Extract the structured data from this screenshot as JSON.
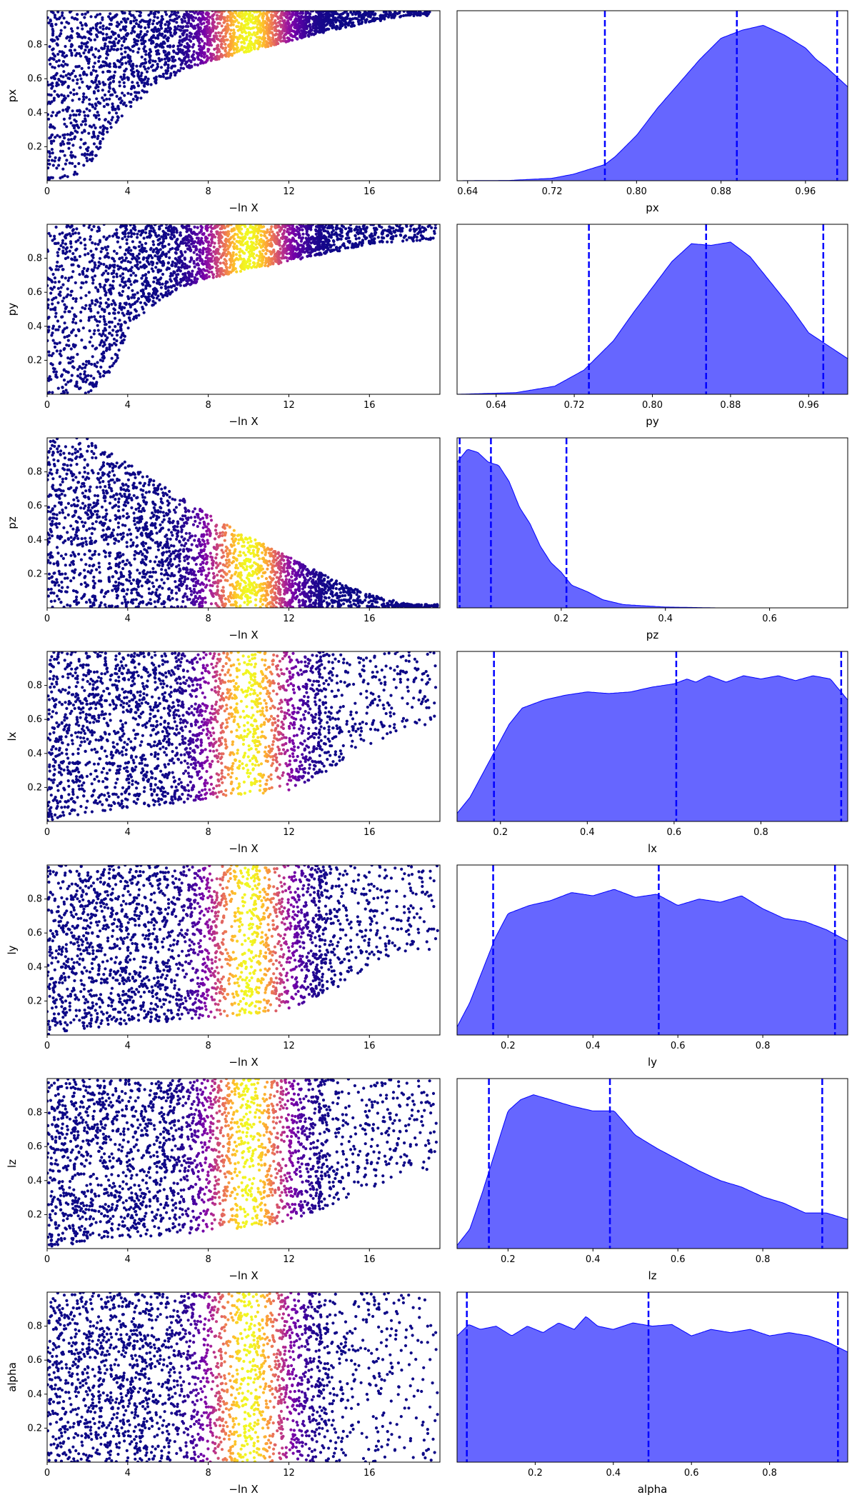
{
  "colors": {
    "scatter_colormap": [
      "#0d0887",
      "#46039f",
      "#7201a8",
      "#9c179e",
      "#bd3786",
      "#d8576b",
      "#ed7953",
      "#fb9f3a",
      "#fdca26",
      "#f0f921"
    ],
    "kde_fill": "#0000ff",
    "kde_fill_opacity": 0.6,
    "quantile_line": "#0000ff"
  },
  "chart_data": [
    {
      "type": "scatter",
      "param": "px",
      "xlabel": "−ln X",
      "ylabel": "px",
      "xlim": [
        0,
        19.5
      ],
      "ylim": [
        0,
        1
      ],
      "xticks": [
        0,
        4,
        8,
        12,
        16
      ],
      "xtick_labels": [
        "0",
        "4",
        "8",
        "12",
        "16"
      ],
      "yticks": [
        0.2,
        0.4,
        0.6,
        0.8
      ],
      "ytick_labels": [
        "0.2",
        "0.4",
        "0.6",
        "0.8"
      ],
      "colormap": "plasma",
      "color_peak_x": 10,
      "envelope": {
        "lower": [
          [
            0,
            0.0
          ],
          [
            1.5,
            0.0
          ],
          [
            2.5,
            0.15
          ],
          [
            3.0,
            0.28
          ],
          [
            4.0,
            0.42
          ],
          [
            5.0,
            0.52
          ],
          [
            6.0,
            0.6
          ],
          [
            7.0,
            0.66
          ],
          [
            8.0,
            0.7
          ],
          [
            10.0,
            0.76
          ],
          [
            12.0,
            0.82
          ],
          [
            14.0,
            0.88
          ],
          [
            16.0,
            0.93
          ],
          [
            18.0,
            0.97
          ]
        ],
        "upper_y": 1.0
      },
      "x_max_sample": 19.0
    },
    {
      "type": "area",
      "param": "px",
      "xlabel": "px",
      "xlim": [
        0.63,
        1.0
      ],
      "xticks": [
        0.64,
        0.72,
        0.8,
        0.88,
        0.96
      ],
      "xtick_labels": [
        "0.64",
        "0.72",
        "0.80",
        "0.88",
        "0.96"
      ],
      "ylim": [
        0,
        1.05
      ],
      "quantiles": [
        0.77,
        0.895,
        0.99
      ],
      "density": [
        [
          0.63,
          0.0
        ],
        [
          0.68,
          0.002
        ],
        [
          0.72,
          0.015
        ],
        [
          0.74,
          0.04
        ],
        [
          0.76,
          0.08
        ],
        [
          0.77,
          0.1
        ],
        [
          0.78,
          0.15
        ],
        [
          0.8,
          0.28
        ],
        [
          0.82,
          0.45
        ],
        [
          0.84,
          0.6
        ],
        [
          0.86,
          0.75
        ],
        [
          0.88,
          0.88
        ],
        [
          0.9,
          0.93
        ],
        [
          0.92,
          0.96
        ],
        [
          0.94,
          0.9
        ],
        [
          0.96,
          0.82
        ],
        [
          0.97,
          0.75
        ],
        [
          0.98,
          0.7
        ],
        [
          1.0,
          0.58
        ]
      ]
    },
    {
      "type": "scatter",
      "param": "py",
      "xlabel": "−ln X",
      "ylabel": "py",
      "xlim": [
        0,
        19.5
      ],
      "ylim": [
        0,
        1
      ],
      "xticks": [
        0,
        4,
        8,
        12,
        16
      ],
      "xtick_labels": [
        "0",
        "4",
        "8",
        "12",
        "16"
      ],
      "yticks": [
        0.2,
        0.4,
        0.6,
        0.8
      ],
      "ytick_labels": [
        "0.2",
        "0.4",
        "0.6",
        "0.8"
      ],
      "colormap": "plasma",
      "color_peak_x": 10,
      "envelope": {
        "lower": [
          [
            0,
            0.0
          ],
          [
            2.0,
            0.0
          ],
          [
            3.0,
            0.1
          ],
          [
            3.5,
            0.2
          ],
          [
            4.0,
            0.38
          ],
          [
            5.0,
            0.5
          ],
          [
            6.0,
            0.58
          ],
          [
            7.0,
            0.64
          ],
          [
            8.0,
            0.68
          ],
          [
            10.0,
            0.73
          ],
          [
            12.0,
            0.78
          ],
          [
            14.0,
            0.83
          ],
          [
            16.0,
            0.88
          ],
          [
            17.5,
            0.9
          ]
        ],
        "upper_y": 1.0
      },
      "x_max_sample": 19.3
    },
    {
      "type": "area",
      "param": "py",
      "xlabel": "py",
      "xlim": [
        0.6,
        1.0
      ],
      "xticks": [
        0.64,
        0.72,
        0.8,
        0.88,
        0.96
      ],
      "xtick_labels": [
        "0.64",
        "0.72",
        "0.80",
        "0.88",
        "0.96"
      ],
      "ylim": [
        0,
        1.05
      ],
      "quantiles": [
        0.735,
        0.855,
        0.975
      ],
      "density": [
        [
          0.6,
          0.0
        ],
        [
          0.66,
          0.01
        ],
        [
          0.7,
          0.05
        ],
        [
          0.73,
          0.15
        ],
        [
          0.76,
          0.33
        ],
        [
          0.78,
          0.5
        ],
        [
          0.8,
          0.66
        ],
        [
          0.82,
          0.82
        ],
        [
          0.84,
          0.93
        ],
        [
          0.86,
          0.92
        ],
        [
          0.88,
          0.94
        ],
        [
          0.9,
          0.85
        ],
        [
          0.92,
          0.7
        ],
        [
          0.94,
          0.55
        ],
        [
          0.96,
          0.38
        ],
        [
          0.98,
          0.3
        ],
        [
          1.0,
          0.22
        ]
      ]
    },
    {
      "type": "scatter",
      "param": "pz",
      "xlabel": "−ln X",
      "ylabel": "pz",
      "xlim": [
        0,
        19.5
      ],
      "ylim": [
        0,
        1
      ],
      "xticks": [
        0,
        4,
        8,
        12,
        16
      ],
      "xtick_labels": [
        "0",
        "4",
        "8",
        "12",
        "16"
      ],
      "yticks": [
        0.2,
        0.4,
        0.6,
        0.8
      ],
      "ytick_labels": [
        "0.2",
        "0.4",
        "0.6",
        "0.8"
      ],
      "colormap": "plasma",
      "color_peak_x": 10,
      "envelope": {
        "upper": [
          [
            0,
            1.0
          ],
          [
            2.0,
            1.0
          ],
          [
            4.0,
            0.85
          ],
          [
            6.0,
            0.7
          ],
          [
            8.0,
            0.55
          ],
          [
            10.0,
            0.42
          ],
          [
            12.0,
            0.3
          ],
          [
            14.0,
            0.18
          ],
          [
            16.0,
            0.08
          ],
          [
            18.0,
            0.02
          ]
        ],
        "lower_y": 0.0
      },
      "x_max_sample": 19.4
    },
    {
      "type": "area",
      "param": "pz",
      "xlabel": "pz",
      "xlim": [
        0.0,
        0.75
      ],
      "xticks": [
        0.2,
        0.4,
        0.6
      ],
      "xtick_labels": [
        "0.2",
        "0.4",
        "0.6"
      ],
      "ylim": [
        0,
        1.05
      ],
      "quantiles": [
        0.005,
        0.065,
        0.21
      ],
      "density": [
        [
          0.0,
          0.9
        ],
        [
          0.02,
          0.98
        ],
        [
          0.04,
          0.96
        ],
        [
          0.06,
          0.9
        ],
        [
          0.08,
          0.88
        ],
        [
          0.1,
          0.78
        ],
        [
          0.12,
          0.62
        ],
        [
          0.14,
          0.52
        ],
        [
          0.16,
          0.38
        ],
        [
          0.18,
          0.28
        ],
        [
          0.2,
          0.22
        ],
        [
          0.22,
          0.14
        ],
        [
          0.25,
          0.1
        ],
        [
          0.28,
          0.05
        ],
        [
          0.32,
          0.02
        ],
        [
          0.4,
          0.005
        ],
        [
          0.5,
          0.0
        ],
        [
          0.75,
          0.0
        ]
      ]
    },
    {
      "type": "scatter",
      "param": "lx",
      "xlabel": "−ln X",
      "ylabel": "lx",
      "xlim": [
        0,
        19.5
      ],
      "ylim": [
        0,
        1
      ],
      "xticks": [
        0,
        4,
        8,
        12,
        16
      ],
      "xtick_labels": [
        "0",
        "4",
        "8",
        "12",
        "16"
      ],
      "yticks": [
        0.2,
        0.4,
        0.6,
        0.8
      ],
      "ytick_labels": [
        "0.2",
        "0.4",
        "0.6",
        "0.8"
      ],
      "colormap": "plasma",
      "color_peak_x": 10,
      "envelope": {
        "lower": [
          [
            0,
            0.0
          ],
          [
            2.0,
            0.05
          ],
          [
            4.0,
            0.08
          ],
          [
            6.0,
            0.1
          ],
          [
            8.0,
            0.13
          ],
          [
            10.0,
            0.15
          ],
          [
            12.0,
            0.18
          ],
          [
            14.0,
            0.3
          ],
          [
            16.0,
            0.45
          ],
          [
            18.0,
            0.55
          ]
        ],
        "upper_y": 1.0
      },
      "x_max_sample": 19.3
    },
    {
      "type": "area",
      "param": "lx",
      "xlabel": "lx",
      "xlim": [
        0.1,
        1.0
      ],
      "xticks": [
        0.2,
        0.4,
        0.6,
        0.8
      ],
      "xtick_labels": [
        "0.2",
        "0.4",
        "0.6",
        "0.8"
      ],
      "ylim": [
        0,
        1.05
      ],
      "quantiles": [
        0.185,
        0.605,
        0.985
      ],
      "density": [
        [
          0.1,
          0.05
        ],
        [
          0.13,
          0.15
        ],
        [
          0.16,
          0.3
        ],
        [
          0.19,
          0.45
        ],
        [
          0.22,
          0.6
        ],
        [
          0.25,
          0.7
        ],
        [
          0.3,
          0.75
        ],
        [
          0.35,
          0.78
        ],
        [
          0.4,
          0.8
        ],
        [
          0.45,
          0.79
        ],
        [
          0.5,
          0.8
        ],
        [
          0.55,
          0.83
        ],
        [
          0.6,
          0.85
        ],
        [
          0.63,
          0.88
        ],
        [
          0.65,
          0.86
        ],
        [
          0.68,
          0.9
        ],
        [
          0.72,
          0.86
        ],
        [
          0.76,
          0.9
        ],
        [
          0.8,
          0.88
        ],
        [
          0.84,
          0.9
        ],
        [
          0.88,
          0.87
        ],
        [
          0.92,
          0.9
        ],
        [
          0.96,
          0.88
        ],
        [
          1.0,
          0.75
        ]
      ]
    },
    {
      "type": "scatter",
      "param": "ly",
      "xlabel": "−ln X",
      "ylabel": "ly",
      "xlim": [
        0,
        19.5
      ],
      "ylim": [
        0,
        1
      ],
      "xticks": [
        0,
        4,
        8,
        12,
        16
      ],
      "xtick_labels": [
        "0",
        "4",
        "8",
        "12",
        "16"
      ],
      "yticks": [
        0.2,
        0.4,
        0.6,
        0.8
      ],
      "ytick_labels": [
        "0.2",
        "0.4",
        "0.6",
        "0.8"
      ],
      "colormap": "plasma",
      "color_peak_x": 10,
      "envelope": {
        "lower": [
          [
            0,
            0.0
          ],
          [
            2.0,
            0.04
          ],
          [
            4.0,
            0.06
          ],
          [
            6.0,
            0.08
          ],
          [
            8.0,
            0.1
          ],
          [
            10.0,
            0.12
          ],
          [
            12.0,
            0.15
          ],
          [
            14.0,
            0.25
          ],
          [
            16.0,
            0.4
          ],
          [
            18.0,
            0.5
          ]
        ],
        "upper_y": 1.0
      },
      "x_max_sample": 19.4
    },
    {
      "type": "area",
      "param": "ly",
      "xlabel": "ly",
      "xlim": [
        0.08,
        1.0
      ],
      "xticks": [
        0.2,
        0.4,
        0.6,
        0.8
      ],
      "xtick_labels": [
        "0.2",
        "0.4",
        "0.6",
        "0.8"
      ],
      "ylim": [
        0,
        1.05
      ],
      "quantiles": [
        0.165,
        0.555,
        0.97
      ],
      "density": [
        [
          0.08,
          0.05
        ],
        [
          0.11,
          0.2
        ],
        [
          0.14,
          0.4
        ],
        [
          0.17,
          0.6
        ],
        [
          0.2,
          0.75
        ],
        [
          0.25,
          0.8
        ],
        [
          0.3,
          0.83
        ],
        [
          0.35,
          0.88
        ],
        [
          0.4,
          0.86
        ],
        [
          0.45,
          0.9
        ],
        [
          0.5,
          0.85
        ],
        [
          0.55,
          0.87
        ],
        [
          0.6,
          0.8
        ],
        [
          0.65,
          0.84
        ],
        [
          0.7,
          0.82
        ],
        [
          0.75,
          0.86
        ],
        [
          0.8,
          0.78
        ],
        [
          0.85,
          0.72
        ],
        [
          0.9,
          0.7
        ],
        [
          0.95,
          0.65
        ],
        [
          1.0,
          0.58
        ]
      ]
    },
    {
      "type": "scatter",
      "param": "lz",
      "xlabel": "−ln X",
      "ylabel": "lz",
      "xlim": [
        0,
        19.5
      ],
      "ylim": [
        0,
        1
      ],
      "xticks": [
        0,
        4,
        8,
        12,
        16
      ],
      "xtick_labels": [
        "0",
        "4",
        "8",
        "12",
        "16"
      ],
      "yticks": [
        0.2,
        0.4,
        0.6,
        0.8
      ],
      "ytick_labels": [
        "0.2",
        "0.4",
        "0.6",
        "0.8"
      ],
      "colormap": "plasma",
      "color_peak_x": 10,
      "envelope": {
        "lower": [
          [
            0,
            0.0
          ],
          [
            2.0,
            0.04
          ],
          [
            4.0,
            0.06
          ],
          [
            6.0,
            0.08
          ],
          [
            8.0,
            0.1
          ],
          [
            10.0,
            0.12
          ],
          [
            12.0,
            0.15
          ],
          [
            14.0,
            0.25
          ],
          [
            16.0,
            0.35
          ],
          [
            18.0,
            0.45
          ]
        ],
        "upper_y": 1.0
      },
      "x_max_sample": 19.4
    },
    {
      "type": "area",
      "param": "lz",
      "xlabel": "lz",
      "xlim": [
        0.08,
        1.0
      ],
      "xticks": [
        0.2,
        0.4,
        0.6,
        0.8
      ],
      "xtick_labels": [
        "0.2",
        "0.4",
        "0.6",
        "0.8"
      ],
      "ylim": [
        0,
        1.05
      ],
      "quantiles": [
        0.155,
        0.44,
        0.94
      ],
      "density": [
        [
          0.08,
          0.02
        ],
        [
          0.11,
          0.12
        ],
        [
          0.14,
          0.35
        ],
        [
          0.17,
          0.6
        ],
        [
          0.2,
          0.85
        ],
        [
          0.23,
          0.92
        ],
        [
          0.26,
          0.95
        ],
        [
          0.3,
          0.92
        ],
        [
          0.35,
          0.88
        ],
        [
          0.4,
          0.85
        ],
        [
          0.45,
          0.85
        ],
        [
          0.5,
          0.7
        ],
        [
          0.55,
          0.62
        ],
        [
          0.6,
          0.55
        ],
        [
          0.65,
          0.48
        ],
        [
          0.7,
          0.42
        ],
        [
          0.75,
          0.38
        ],
        [
          0.8,
          0.32
        ],
        [
          0.85,
          0.28
        ],
        [
          0.9,
          0.22
        ],
        [
          0.95,
          0.22
        ],
        [
          1.0,
          0.18
        ]
      ]
    },
    {
      "type": "scatter",
      "param": "alpha",
      "xlabel": "−ln X",
      "ylabel": "alpha",
      "xlim": [
        0,
        19.5
      ],
      "ylim": [
        0,
        1
      ],
      "xticks": [
        0,
        4,
        8,
        12,
        16
      ],
      "xtick_labels": [
        "0",
        "4",
        "8",
        "12",
        "16"
      ],
      "yticks": [
        0.2,
        0.4,
        0.6,
        0.8
      ],
      "ytick_labels": [
        "0.2",
        "0.4",
        "0.6",
        "0.8"
      ],
      "colormap": "plasma",
      "color_peak_x": 10,
      "envelope": {
        "lower_y": 0.0,
        "upper_y": 1.0
      },
      "x_max_sample": 19.4
    },
    {
      "type": "area",
      "param": "alpha",
      "xlabel": "alpha",
      "xlim": [
        0.0,
        1.0
      ],
      "xticks": [
        0.2,
        0.4,
        0.6,
        0.8
      ],
      "xtick_labels": [
        "0.2",
        "0.4",
        "0.6",
        "0.8"
      ],
      "ylim": [
        0,
        1.05
      ],
      "quantiles": [
        0.025,
        0.49,
        0.975
      ],
      "density": [
        [
          0.0,
          0.78
        ],
        [
          0.03,
          0.85
        ],
        [
          0.06,
          0.82
        ],
        [
          0.1,
          0.84
        ],
        [
          0.14,
          0.78
        ],
        [
          0.18,
          0.84
        ],
        [
          0.22,
          0.8
        ],
        [
          0.26,
          0.86
        ],
        [
          0.3,
          0.82
        ],
        [
          0.33,
          0.9
        ],
        [
          0.36,
          0.84
        ],
        [
          0.4,
          0.82
        ],
        [
          0.45,
          0.86
        ],
        [
          0.5,
          0.84
        ],
        [
          0.55,
          0.85
        ],
        [
          0.6,
          0.78
        ],
        [
          0.65,
          0.82
        ],
        [
          0.7,
          0.8
        ],
        [
          0.75,
          0.82
        ],
        [
          0.8,
          0.78
        ],
        [
          0.85,
          0.8
        ],
        [
          0.9,
          0.78
        ],
        [
          0.95,
          0.74
        ],
        [
          1.0,
          0.68
        ]
      ]
    }
  ]
}
